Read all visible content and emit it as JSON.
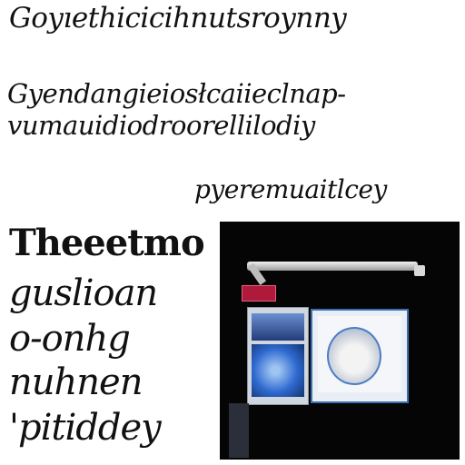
{
  "lines": {
    "l1": "Goyıethicicihnutsroynny",
    "l2": "Gyendangieiosłcaiieclnap-",
    "l3": "vumauidiodroorellilodiy",
    "l4": "pyeremuaitlcey"
  },
  "big_text": {
    "b1": "Theeetmo",
    "b2": "guslioan",
    "b3": "o-onhg",
    "b4": "nuhnen",
    "b5": "'pitiddey"
  },
  "colors": {
    "background": "#ffffff",
    "text": "#111111",
    "photo_background": "#050506",
    "sign": "#b01a3a",
    "screen_blue": "#2f6ad0"
  }
}
